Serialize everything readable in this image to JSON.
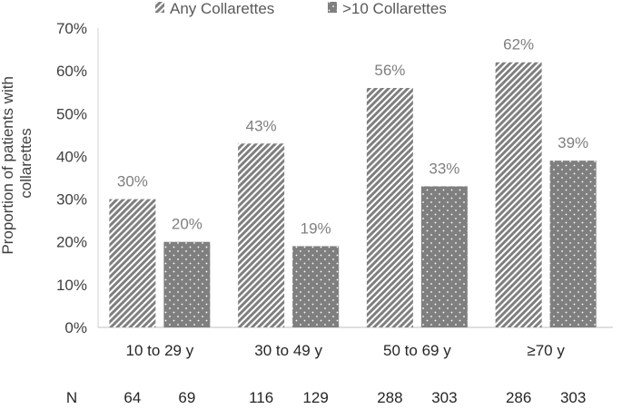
{
  "chart_data": {
    "type": "bar",
    "ylabel": "Proportion of patients with collarettes",
    "ylabel_lines": [
      "Proportion of patients with",
      "collarettes"
    ],
    "ylim": [
      0,
      70
    ],
    "yticks": [
      "0%",
      "10%",
      "20%",
      "30%",
      "40%",
      "50%",
      "60%",
      "70%"
    ],
    "ytick_values": [
      0,
      10,
      20,
      30,
      40,
      50,
      60,
      70
    ],
    "categories": [
      "10 to 29 y",
      "30 to 49 y",
      "50 to 69 y",
      "≥70 y"
    ],
    "series": [
      {
        "name": "Any Collarettes",
        "values": [
          30,
          43,
          56,
          62
        ],
        "labels": [
          "30%",
          "43%",
          "56%",
          "62%"
        ],
        "n": [
          "64",
          "116",
          "288",
          "286"
        ],
        "pattern": "diagonal-hatch"
      },
      {
        "name": ">10 Collarettes",
        "values": [
          20,
          19,
          33,
          39
        ],
        "labels": [
          "20%",
          "19%",
          "33%",
          "39%"
        ],
        "n": [
          "69",
          "129",
          "303",
          "303"
        ],
        "pattern": "dots"
      }
    ],
    "n_label": "N",
    "legend_position": "top",
    "grid": false,
    "bar_color": "#7f7f7f",
    "text_color": "#595959",
    "label_color": "#7f7f7f"
  }
}
